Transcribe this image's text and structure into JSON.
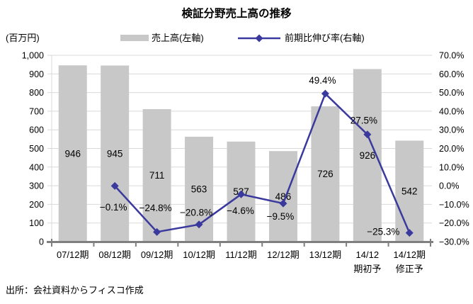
{
  "chart_data": {
    "type": "combo",
    "title": "検証分野売上高の推移",
    "unit_label": "(百万円)",
    "categories": [
      [
        "07/12期"
      ],
      [
        "08/12期"
      ],
      [
        "09/12期"
      ],
      [
        "10/12期"
      ],
      [
        "11/12期"
      ],
      [
        "12/12期"
      ],
      [
        "13/12期"
      ],
      [
        "14/12",
        "期初予"
      ],
      [
        "14/12期",
        "修正予"
      ]
    ],
    "series": [
      {
        "name": "売上高(左軸)",
        "type": "bar",
        "axis": "left",
        "color": "#C8C8C8",
        "values": [
          946,
          945,
          711,
          563,
          537,
          486,
          726,
          926,
          542
        ],
        "labels": [
          "946",
          "945",
          "711",
          "563",
          "537",
          "486",
          "726",
          "926",
          "542"
        ]
      },
      {
        "name": "前期比伸び率(右軸)",
        "type": "line",
        "axis": "right",
        "color": "#3A3A9E",
        "values": [
          null,
          -0.1,
          -24.8,
          -20.8,
          -4.6,
          -9.5,
          49.4,
          27.5,
          -25.3
        ],
        "labels": [
          null,
          "−0.1%",
          "−24.8%",
          "−20.8%",
          "−4.6%",
          "−9.5%",
          "49.4%",
          "27.5%",
          "−25.3%"
        ],
        "label_offsets": [
          null,
          [
            -2,
            30
          ],
          [
            -2,
            -34
          ],
          [
            -4,
            -17
          ],
          [
            -1,
            23
          ],
          [
            -4,
            18
          ],
          [
            -4,
            -19
          ],
          [
            -5,
            -20
          ],
          [
            -37,
            -2
          ]
        ]
      }
    ],
    "axes": {
      "left": {
        "min": 0,
        "max": 1000,
        "step": 100,
        "tick_labels": [
          "0",
          "100",
          "200",
          "300",
          "400",
          "500",
          "600",
          "700",
          "800",
          "900",
          "1,000"
        ]
      },
      "right": {
        "min": -30,
        "max": 70,
        "step": 10,
        "tick_labels": [
          "−30.0%",
          "−20.0%",
          "−10.0%",
          "0.0%",
          "10.0%",
          "20.0%",
          "30.0%",
          "40.0%",
          "50.0%",
          "60.0%",
          "70.0%"
        ]
      }
    },
    "legend": [
      {
        "label": "売上高(左軸)",
        "swatch": "bar"
      },
      {
        "label": "前期比伸び率(右軸)",
        "swatch": "line-diamond"
      }
    ],
    "legend_position": "top",
    "grid": true,
    "colors": {
      "grid": "#D9D9D9",
      "axis_line": "#7F7F7F",
      "text": "#000000"
    }
  },
  "source_note": "出所：会社資料からフィスコ作成"
}
